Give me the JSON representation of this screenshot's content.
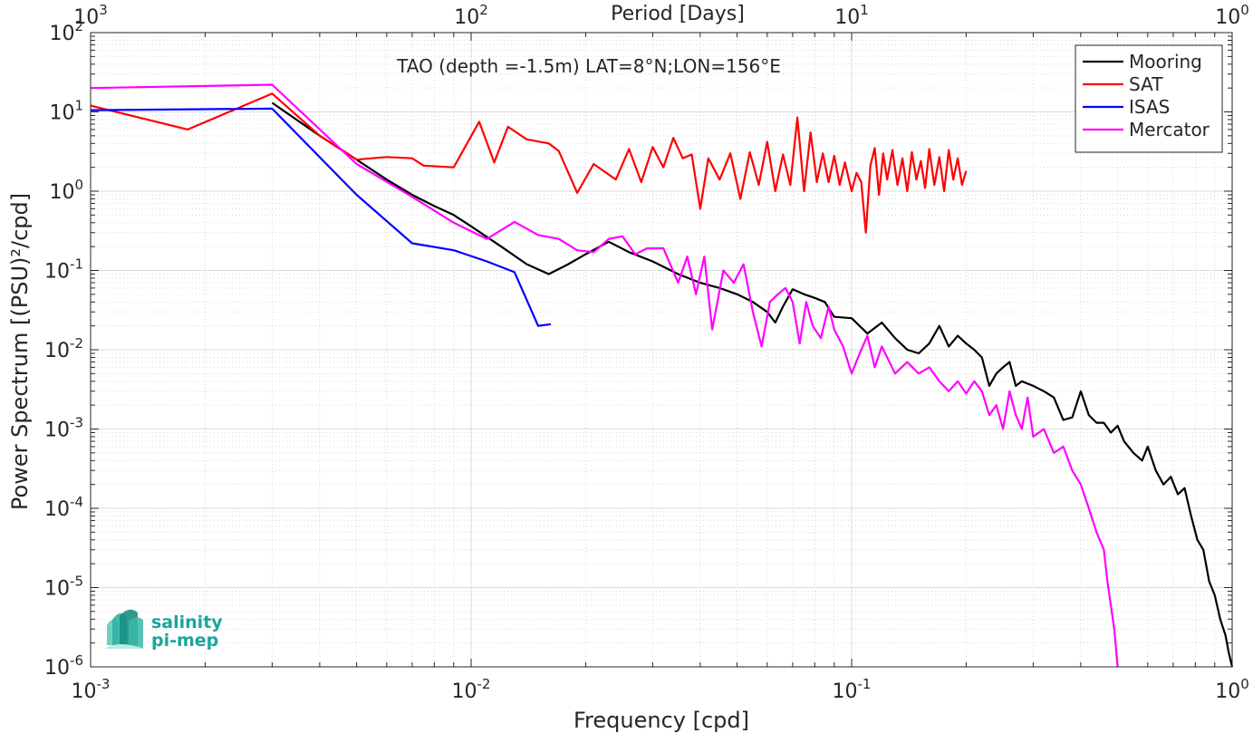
{
  "chart_data": {
    "type": "line",
    "title": "TAO (depth =-1.5m) LAT=8°N;LON=156°E",
    "xlabel": "Frequency [cpd]",
    "ylabel": "Power Spectrum [(PSU)²/cpd]",
    "top_axis_label": "Period [Days]",
    "xscale": "log",
    "yscale": "log",
    "xlim": [
      0.001,
      1
    ],
    "ylim": [
      1e-06,
      100
    ],
    "grid": true,
    "legend_position": "top-right",
    "x_ticks": [
      {
        "value": 0.001,
        "base": "10",
        "exp": "-3"
      },
      {
        "value": 0.01,
        "base": "10",
        "exp": "-2"
      },
      {
        "value": 0.1,
        "base": "10",
        "exp": "-1"
      },
      {
        "value": 1,
        "base": "10",
        "exp": "0"
      }
    ],
    "y_ticks": [
      {
        "value": 1e-06,
        "base": "10",
        "exp": "-6"
      },
      {
        "value": 1e-05,
        "base": "10",
        "exp": "-5"
      },
      {
        "value": 0.0001,
        "base": "10",
        "exp": "-4"
      },
      {
        "value": 0.001,
        "base": "10",
        "exp": "-3"
      },
      {
        "value": 0.01,
        "base": "10",
        "exp": "-2"
      },
      {
        "value": 0.1,
        "base": "10",
        "exp": "-1"
      },
      {
        "value": 1,
        "base": "10",
        "exp": "0"
      },
      {
        "value": 10,
        "base": "10",
        "exp": "1"
      },
      {
        "value": 100,
        "base": "10",
        "exp": "2"
      }
    ],
    "top_ticks": [
      {
        "value": 0.001,
        "base": "10",
        "exp": "3"
      },
      {
        "value": 0.01,
        "base": "10",
        "exp": "2"
      },
      {
        "value": 0.1,
        "base": "10",
        "exp": "1"
      },
      {
        "value": 1,
        "base": "10",
        "exp": "0"
      }
    ],
    "series": [
      {
        "name": "Mooring",
        "color": "#000000",
        "points": [
          [
            0.003,
            13
          ],
          [
            0.004,
            5
          ],
          [
            0.005,
            2.5
          ],
          [
            0.006,
            1.4
          ],
          [
            0.007,
            0.9
          ],
          [
            0.008,
            0.65
          ],
          [
            0.009,
            0.5
          ],
          [
            0.01,
            0.36
          ],
          [
            0.012,
            0.2
          ],
          [
            0.014,
            0.12
          ],
          [
            0.016,
            0.09
          ],
          [
            0.018,
            0.12
          ],
          [
            0.02,
            0.16
          ],
          [
            0.023,
            0.23
          ],
          [
            0.026,
            0.17
          ],
          [
            0.03,
            0.13
          ],
          [
            0.035,
            0.09
          ],
          [
            0.04,
            0.07
          ],
          [
            0.045,
            0.06
          ],
          [
            0.05,
            0.05
          ],
          [
            0.055,
            0.04
          ],
          [
            0.06,
            0.03
          ],
          [
            0.063,
            0.022
          ],
          [
            0.066,
            0.035
          ],
          [
            0.07,
            0.058
          ],
          [
            0.075,
            0.05
          ],
          [
            0.08,
            0.045
          ],
          [
            0.085,
            0.04
          ],
          [
            0.09,
            0.026
          ],
          [
            0.1,
            0.025
          ],
          [
            0.11,
            0.016
          ],
          [
            0.12,
            0.022
          ],
          [
            0.13,
            0.014
          ],
          [
            0.14,
            0.01
          ],
          [
            0.15,
            0.009
          ],
          [
            0.16,
            0.012
          ],
          [
            0.17,
            0.02
          ],
          [
            0.18,
            0.011
          ],
          [
            0.19,
            0.015
          ],
          [
            0.2,
            0.012
          ],
          [
            0.21,
            0.01
          ],
          [
            0.22,
            0.008
          ],
          [
            0.23,
            0.0035
          ],
          [
            0.24,
            0.005
          ],
          [
            0.25,
            0.006
          ],
          [
            0.26,
            0.007
          ],
          [
            0.27,
            0.0035
          ],
          [
            0.28,
            0.004
          ],
          [
            0.3,
            0.0035
          ],
          [
            0.32,
            0.003
          ],
          [
            0.34,
            0.0025
          ],
          [
            0.36,
            0.0013
          ],
          [
            0.38,
            0.0014
          ],
          [
            0.4,
            0.003
          ],
          [
            0.42,
            0.0015
          ],
          [
            0.44,
            0.0012
          ],
          [
            0.46,
            0.0012
          ],
          [
            0.48,
            0.0009
          ],
          [
            0.5,
            0.0011
          ],
          [
            0.52,
            0.0007
          ],
          [
            0.55,
            0.0005
          ],
          [
            0.58,
            0.0004
          ],
          [
            0.6,
            0.0006
          ],
          [
            0.63,
            0.0003
          ],
          [
            0.66,
            0.0002
          ],
          [
            0.69,
            0.00025
          ],
          [
            0.72,
            0.00015
          ],
          [
            0.75,
            0.00018
          ],
          [
            0.78,
            8e-05
          ],
          [
            0.81,
            4e-05
          ],
          [
            0.84,
            3e-05
          ],
          [
            0.87,
            1.2e-05
          ],
          [
            0.9,
            8e-06
          ],
          [
            0.93,
            4e-06
          ],
          [
            0.96,
            2.5e-06
          ],
          [
            0.98,
            1.5e-06
          ],
          [
            1.0,
            1e-06
          ]
        ]
      },
      {
        "name": "SAT",
        "color": "#ff0000",
        "points": [
          [
            0.001,
            12
          ],
          [
            0.0018,
            6
          ],
          [
            0.003,
            17
          ],
          [
            0.004,
            5
          ],
          [
            0.0045,
            3.5
          ],
          [
            0.005,
            2.5
          ],
          [
            0.006,
            2.7
          ],
          [
            0.007,
            2.6
          ],
          [
            0.0075,
            2.1
          ],
          [
            0.009,
            2.0
          ],
          [
            0.0105,
            7.5
          ],
          [
            0.0115,
            2.3
          ],
          [
            0.0125,
            6.5
          ],
          [
            0.014,
            4.5
          ],
          [
            0.016,
            4.0
          ],
          [
            0.017,
            3.2
          ],
          [
            0.019,
            0.95
          ],
          [
            0.021,
            2.2
          ],
          [
            0.024,
            1.4
          ],
          [
            0.026,
            3.4
          ],
          [
            0.028,
            1.3
          ],
          [
            0.03,
            3.6
          ],
          [
            0.032,
            2.0
          ],
          [
            0.034,
            4.7
          ],
          [
            0.036,
            2.6
          ],
          [
            0.038,
            2.9
          ],
          [
            0.04,
            0.6
          ],
          [
            0.042,
            2.6
          ],
          [
            0.045,
            1.4
          ],
          [
            0.048,
            3.0
          ],
          [
            0.051,
            0.8
          ],
          [
            0.054,
            3.1
          ],
          [
            0.057,
            1.2
          ],
          [
            0.06,
            4.2
          ],
          [
            0.063,
            1.0
          ],
          [
            0.066,
            2.9
          ],
          [
            0.069,
            1.2
          ],
          [
            0.072,
            8.5
          ],
          [
            0.075,
            1.0
          ],
          [
            0.078,
            5.5
          ],
          [
            0.081,
            1.3
          ],
          [
            0.084,
            3.0
          ],
          [
            0.087,
            1.3
          ],
          [
            0.09,
            2.8
          ],
          [
            0.093,
            1.2
          ],
          [
            0.096,
            2.3
          ],
          [
            0.1,
            1.0
          ],
          [
            0.103,
            1.7
          ],
          [
            0.106,
            1.3
          ],
          [
            0.109,
            0.3
          ],
          [
            0.112,
            2.1
          ],
          [
            0.115,
            3.5
          ],
          [
            0.118,
            0.9
          ],
          [
            0.121,
            3.0
          ],
          [
            0.124,
            1.4
          ],
          [
            0.128,
            3.3
          ],
          [
            0.132,
            1.2
          ],
          [
            0.136,
            2.6
          ],
          [
            0.14,
            1.0
          ],
          [
            0.144,
            3.1
          ],
          [
            0.148,
            1.4
          ],
          [
            0.152,
            2.4
          ],
          [
            0.156,
            1.1
          ],
          [
            0.16,
            3.4
          ],
          [
            0.165,
            1.2
          ],
          [
            0.17,
            2.7
          ],
          [
            0.175,
            1.0
          ],
          [
            0.18,
            3.3
          ],
          [
            0.185,
            1.4
          ],
          [
            0.19,
            2.6
          ],
          [
            0.195,
            1.2
          ],
          [
            0.2,
            1.8
          ]
        ]
      },
      {
        "name": "ISAS",
        "color": "#0000ff",
        "points": [
          [
            0.001,
            10.5
          ],
          [
            0.003,
            11
          ],
          [
            0.005,
            0.9
          ],
          [
            0.007,
            0.22
          ],
          [
            0.009,
            0.18
          ],
          [
            0.011,
            0.13
          ],
          [
            0.013,
            0.095
          ],
          [
            0.015,
            0.02
          ],
          [
            0.0162,
            0.021
          ]
        ]
      },
      {
        "name": "Mercator",
        "color": "#ff00ff",
        "points": [
          [
            0.001,
            20
          ],
          [
            0.003,
            22
          ],
          [
            0.005,
            2.2
          ],
          [
            0.007,
            0.85
          ],
          [
            0.009,
            0.4
          ],
          [
            0.011,
            0.25
          ],
          [
            0.013,
            0.41
          ],
          [
            0.015,
            0.28
          ],
          [
            0.017,
            0.25
          ],
          [
            0.019,
            0.18
          ],
          [
            0.021,
            0.17
          ],
          [
            0.023,
            0.25
          ],
          [
            0.025,
            0.27
          ],
          [
            0.027,
            0.16
          ],
          [
            0.029,
            0.19
          ],
          [
            0.032,
            0.19
          ],
          [
            0.035,
            0.07
          ],
          [
            0.037,
            0.15
          ],
          [
            0.039,
            0.05
          ],
          [
            0.041,
            0.15
          ],
          [
            0.043,
            0.018
          ],
          [
            0.046,
            0.1
          ],
          [
            0.049,
            0.07
          ],
          [
            0.052,
            0.12
          ],
          [
            0.055,
            0.03
          ],
          [
            0.058,
            0.011
          ],
          [
            0.061,
            0.04
          ],
          [
            0.064,
            0.05
          ],
          [
            0.067,
            0.06
          ],
          [
            0.07,
            0.04
          ],
          [
            0.073,
            0.012
          ],
          [
            0.076,
            0.04
          ],
          [
            0.079,
            0.02
          ],
          [
            0.083,
            0.014
          ],
          [
            0.087,
            0.035
          ],
          [
            0.09,
            0.018
          ],
          [
            0.095,
            0.011
          ],
          [
            0.1,
            0.005
          ],
          [
            0.105,
            0.009
          ],
          [
            0.11,
            0.015
          ],
          [
            0.115,
            0.006
          ],
          [
            0.12,
            0.011
          ],
          [
            0.13,
            0.005
          ],
          [
            0.14,
            0.007
          ],
          [
            0.15,
            0.005
          ],
          [
            0.16,
            0.006
          ],
          [
            0.17,
            0.004
          ],
          [
            0.18,
            0.003
          ],
          [
            0.19,
            0.004
          ],
          [
            0.2,
            0.0028
          ],
          [
            0.21,
            0.004
          ],
          [
            0.22,
            0.003
          ],
          [
            0.23,
            0.0015
          ],
          [
            0.24,
            0.002
          ],
          [
            0.25,
            0.001
          ],
          [
            0.26,
            0.003
          ],
          [
            0.27,
            0.0015
          ],
          [
            0.28,
            0.001
          ],
          [
            0.29,
            0.0025
          ],
          [
            0.3,
            0.0008
          ],
          [
            0.32,
            0.001
          ],
          [
            0.34,
            0.0005
          ],
          [
            0.36,
            0.0006
          ],
          [
            0.38,
            0.0003
          ],
          [
            0.4,
            0.0002
          ],
          [
            0.42,
            0.0001
          ],
          [
            0.44,
            5e-05
          ],
          [
            0.46,
            3e-05
          ],
          [
            0.47,
            1.2e-05
          ],
          [
            0.48,
            6e-06
          ],
          [
            0.49,
            3e-06
          ],
          [
            0.5,
            1e-06
          ]
        ]
      }
    ]
  },
  "logo": {
    "line1": "salinity",
    "line2": "pi-mep",
    "color": "#1aa69a"
  }
}
